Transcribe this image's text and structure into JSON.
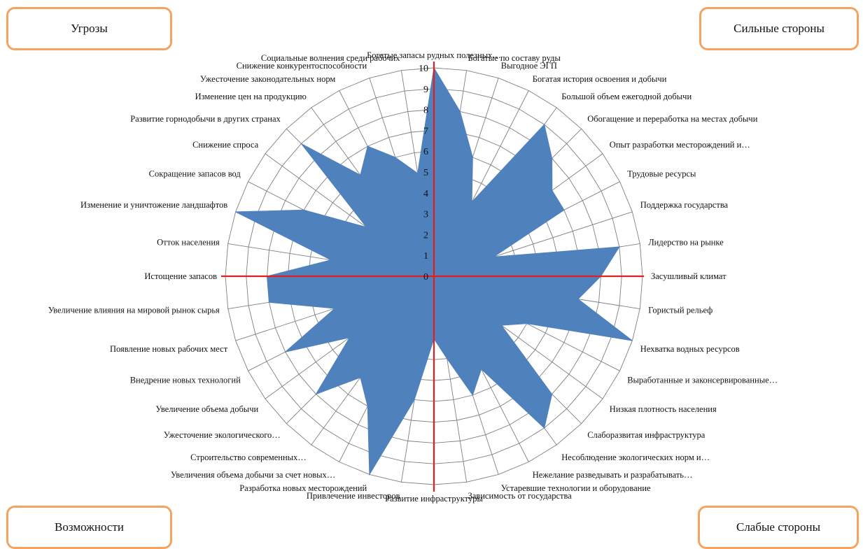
{
  "quadrants": {
    "threats": "Угрозы",
    "strengths": "Сильные стороны",
    "opportunities": "Возможности",
    "weaknesses": "Слабые стороны"
  },
  "colors": {
    "fill": "#4f81bd",
    "grid": "#7f7f7f",
    "axis_lines": "#e02020",
    "box_border": "#f4a460"
  },
  "chart_data": {
    "type": "radar",
    "rlim": [
      0,
      10
    ],
    "ticks": [
      "0",
      "1",
      "2",
      "3",
      "4",
      "5",
      "6",
      "7",
      "8",
      "9",
      "10"
    ],
    "grid": true,
    "categories": [
      "Богатые запасы рудных полезных…",
      "Богатые по составу руды",
      "Выгодное ЭГП",
      "Богатая история освоения и добычи",
      "Большой объем ежегодной добычи",
      "Обогащение и переработка на местах добычи",
      "Опыт разработки месторождений и…",
      "Трудовые ресурсы",
      "Поддержка государства",
      "Лидерство на рынке",
      "Засушливый климат",
      "Гористый рельеф",
      "Нехватка водных ресурсов",
      "Выработанные и законсервированные…",
      "Низкая плотность населения",
      "Слаборазвитая инфраструктура",
      "Несоблюдение экологических норм и…",
      "Нежелание разведывать и разрабатывать…",
      "Устаревшие технологии и оборудование",
      "Зависимость от государства",
      "Развитие инфраструктуры",
      "Привлечение инвесторов",
      "Разработка новых месторождений",
      "Увеличения объема добычи за счет новых…",
      "Строительство современных…",
      "Ужесточение экологического…",
      "Увеличение объема добычи",
      "Внедрение новых технологий",
      "Появление новых рабочих мест",
      "Увеличение влияния на мировой рынок сырья",
      "Истощение запасов",
      "Отток населения",
      "Изменение и уничтожение ландшафтов",
      "Сокращение запасов вод",
      "Снижение спроса",
      "Развитие горнодобычи в других странах",
      "Изменение цен на продукцию",
      "Ужесточение законодательных норм",
      "Снижение конкурентоспособности",
      "Социальные волнения среди рабочих"
    ],
    "values": [
      10,
      8,
      6,
      4,
      9,
      8,
      7,
      7,
      3,
      9,
      8,
      7,
      10,
      5,
      4,
      8,
      9,
      5,
      6,
      4,
      3,
      6,
      10,
      7,
      6,
      8,
      5,
      8,
      5,
      8,
      8,
      5,
      10,
      7,
      4,
      9,
      6,
      7,
      6,
      5
    ]
  }
}
